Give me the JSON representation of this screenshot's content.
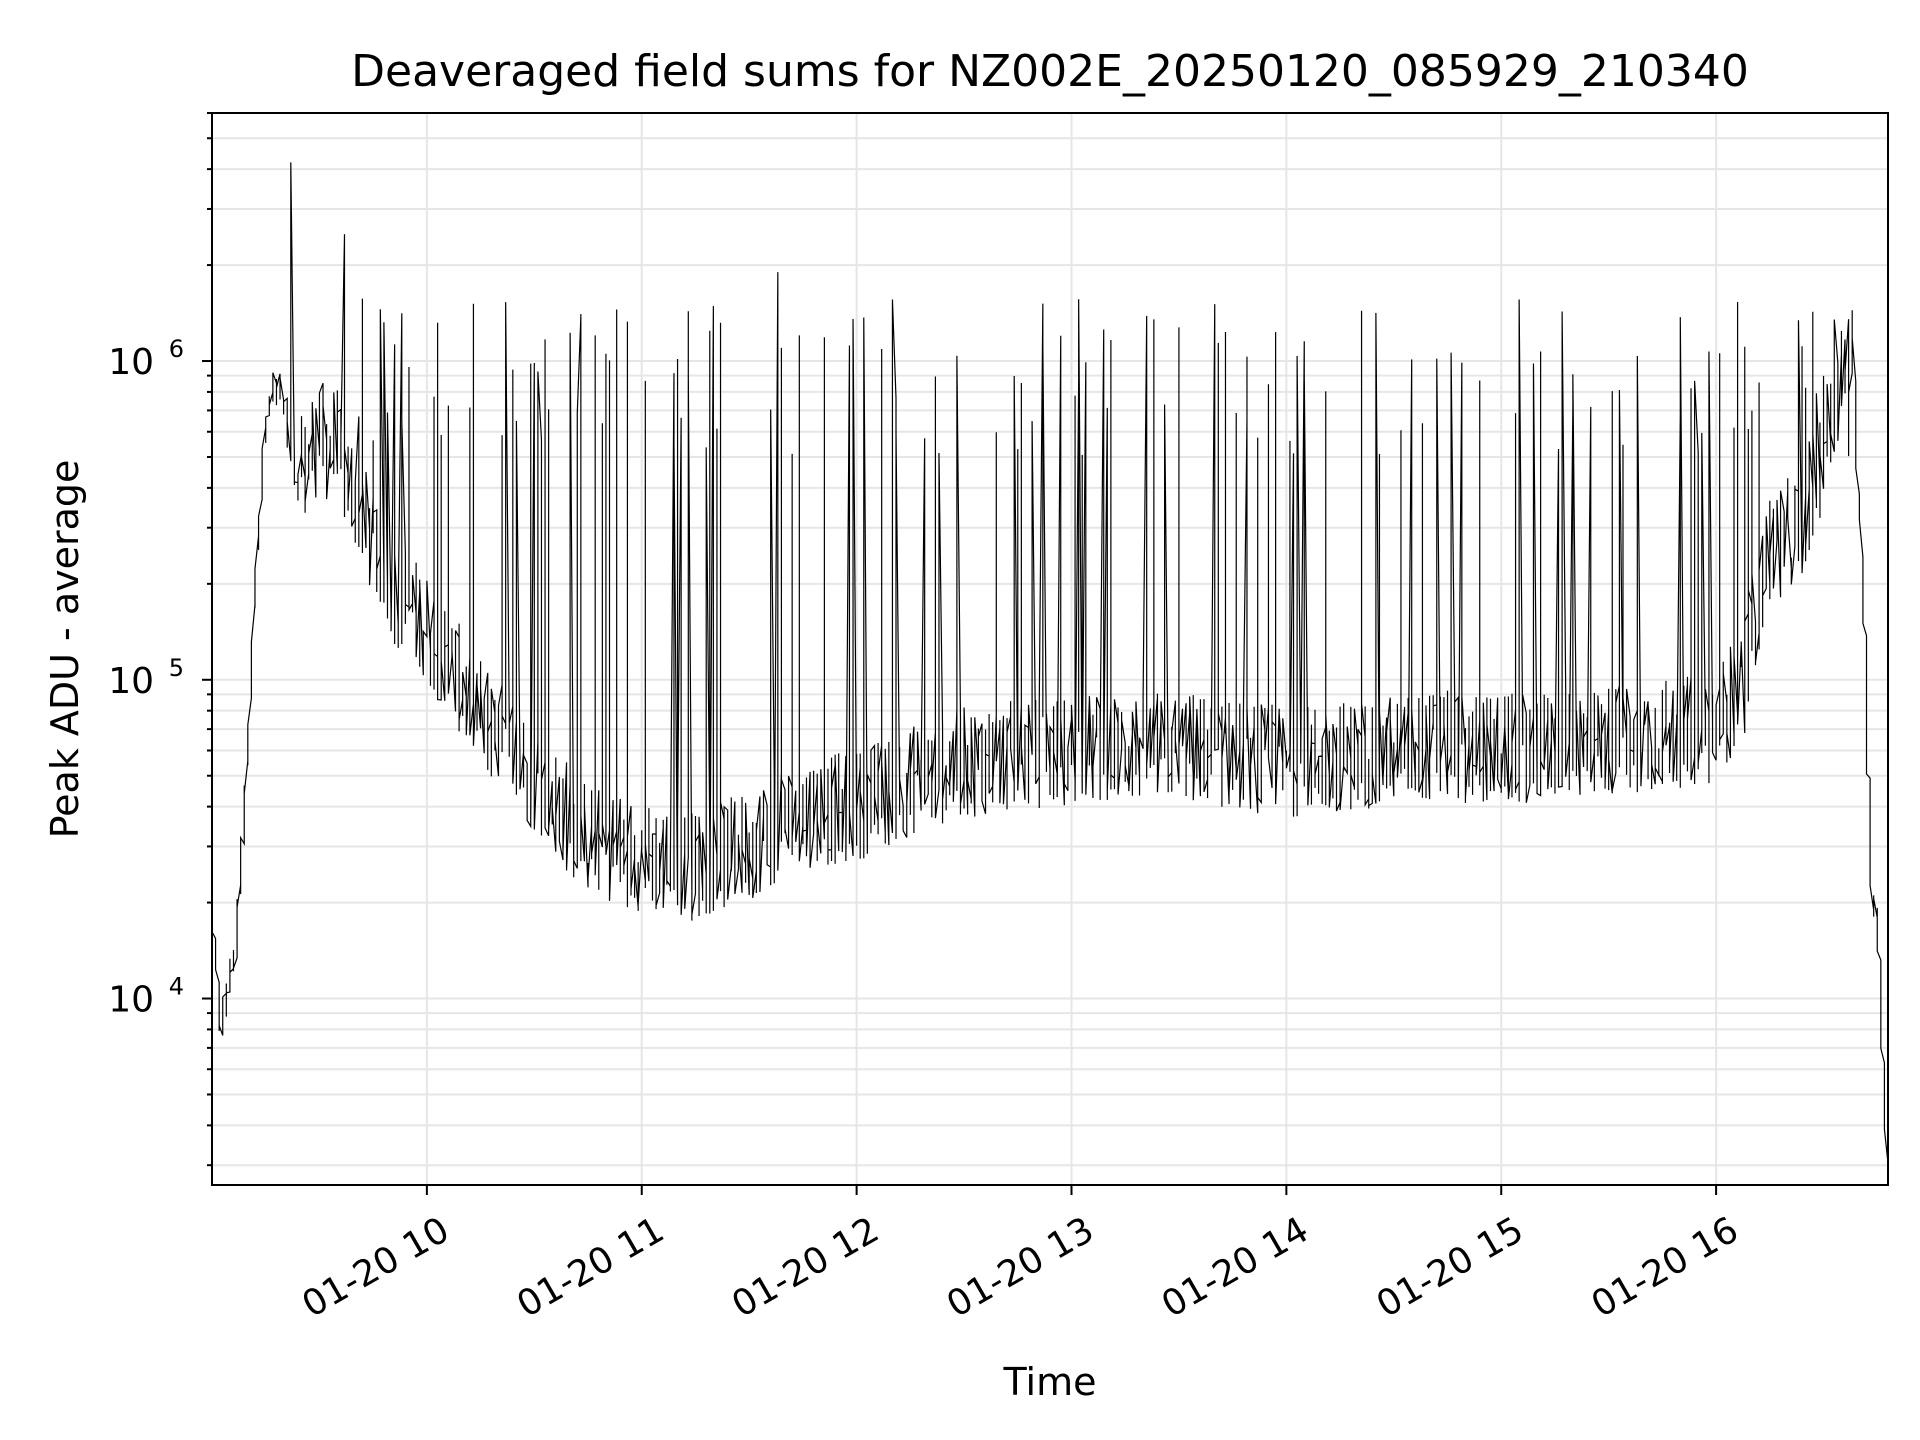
{
  "chart_data": {
    "type": "line",
    "title": "Deaveraged field sums for NZ002E_20250120_085929_210340",
    "xlabel": "Time",
    "ylabel": "Peak ADU - average",
    "yscale": "log",
    "ylim": [
      2600,
      6000000
    ],
    "xlim": [
      "2025-01-20 09:00",
      "2025-01-20 16:48"
    ],
    "x_tick_labels": [
      "01-20 10",
      "01-20 11",
      "01-20 12",
      "01-20 13",
      "01-20 14",
      "01-20 15",
      "01-20 16"
    ],
    "x_ticks": [
      "2025-01-20 10:00",
      "2025-01-20 11:00",
      "2025-01-20 12:00",
      "2025-01-20 13:00",
      "2025-01-20 14:00",
      "2025-01-20 15:00",
      "2025-01-20 16:00"
    ],
    "y_tick_labels": [
      {
        "base": "10",
        "exp": "4",
        "value": 10000
      },
      {
        "base": "10",
        "exp": "5",
        "value": 100000
      },
      {
        "base": "10",
        "exp": "6",
        "value": 1000000
      }
    ],
    "grid": true,
    "line_color": "#000000",
    "series": [
      {
        "x": [
          "2025-01-20 09:00",
          "2025-01-20 09:01",
          "2025-01-20 09:03",
          "2025-01-20 09:05",
          "2025-01-20 09:07",
          "2025-01-20 09:09",
          "2025-01-20 09:11",
          "2025-01-20 09:13",
          "2025-01-20 09:15",
          "2025-01-20 09:17",
          "2025-01-20 09:19",
          "2025-01-20 09:21",
          "2025-01-20 09:23",
          "2025-01-20 09:25",
          "2025-01-20 09:28",
          "2025-01-20 09:30",
          "2025-01-20 09:35",
          "2025-01-20 09:40",
          "2025-01-20 09:50",
          "2025-01-20 10:00",
          "2025-01-20 10:15",
          "2025-01-20 10:30",
          "2025-01-20 10:45",
          "2025-01-20 11:00",
          "2025-01-20 11:15",
          "2025-01-20 11:30",
          "2025-01-20 11:45",
          "2025-01-20 12:00",
          "2025-01-20 12:15",
          "2025-01-20 12:30",
          "2025-01-20 12:45",
          "2025-01-20 13:00",
          "2025-01-20 13:30",
          "2025-01-20 14:00",
          "2025-01-20 14:30",
          "2025-01-20 14:45",
          "2025-01-20 15:00",
          "2025-01-20 15:30",
          "2025-01-20 16:00",
          "2025-01-20 16:08",
          "2025-01-20 16:15",
          "2025-01-20 16:25",
          "2025-01-20 16:32",
          "2025-01-20 16:36",
          "2025-01-20 16:38",
          "2025-01-20 16:41",
          "2025-01-20 16:44",
          "2025-01-20 16:46",
          "2025-01-20 16:48"
        ],
        "y": [
          18000,
          15000,
          8000,
          11000,
          14000,
          30000,
          80000,
          250000,
          550000,
          800000,
          850000,
          700000,
          450000,
          400000,
          500000,
          600000,
          500000,
          400000,
          200000,
          150000,
          80000,
          50000,
          32000,
          28000,
          26000,
          30000,
          38000,
          40000,
          48000,
          55000,
          58000,
          60000,
          62000,
          55000,
          60000,
          62000,
          60000,
          65000,
          70000,
          100000,
          250000,
          320000,
          600000,
          900000,
          1100000,
          300000,
          22000,
          15000,
          3000
        ]
      }
    ],
    "spikes": [
      {
        "x": "2025-01-20 09:23",
        "y": 4200000
      },
      {
        "x": "2025-01-20 09:37",
        "y": 2500000
      },
      {
        "x": "2025-01-20 11:38",
        "y": 1900000
      },
      {
        "x": "2025-01-20 16:34",
        "y": 1350000
      }
    ]
  }
}
